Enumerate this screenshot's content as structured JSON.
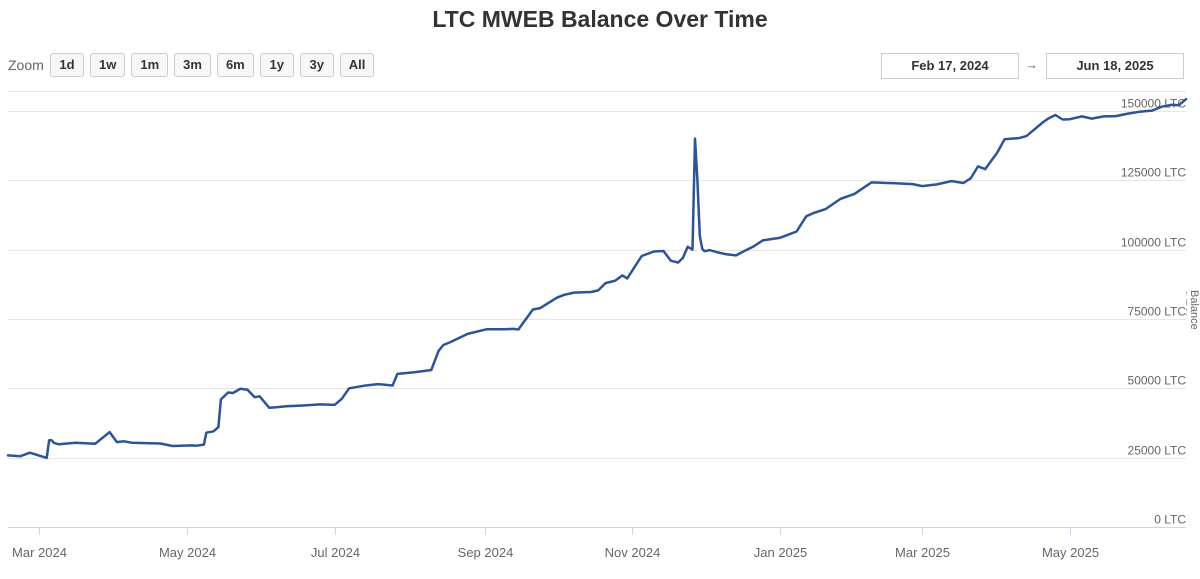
{
  "title": "LTC MWEB Balance Over Time",
  "zoom": {
    "label": "Zoom",
    "buttons": [
      "1d",
      "1w",
      "1m",
      "3m",
      "6m",
      "1y",
      "3y",
      "All"
    ]
  },
  "range": {
    "from": "Feb 17, 2024",
    "arrow": "→",
    "to": "Jun 18, 2025"
  },
  "colors": {
    "series": "#2d5494",
    "grid": "#e6e6e6",
    "axis_text": "#666666"
  },
  "chart_data": {
    "type": "line",
    "title": "LTC MWEB Balance Over Time",
    "ylabel": "Balance (LTC)",
    "ylim": [
      0,
      155000
    ],
    "xlim": [
      "2024-02-17",
      "2025-06-18"
    ],
    "grid": true,
    "y_ticks": [
      0,
      25000,
      50000,
      75000,
      100000,
      125000,
      150000
    ],
    "y_tick_labels": [
      "0 LTC",
      "25000 LTC",
      "50000 LTC",
      "75000 LTC",
      "100000 LTC",
      "125000 LTC",
      "150000 LTC"
    ],
    "x_ticks": [
      "2024-03-01",
      "2024-05-01",
      "2024-07-01",
      "2024-09-01",
      "2024-11-01",
      "2025-01-01",
      "2025-03-01",
      "2025-05-01"
    ],
    "x_tick_labels": [
      "Mar 2024",
      "May 2024",
      "Jul 2024",
      "Sep 2024",
      "Nov 2024",
      "Jan 2025",
      "Mar 2025",
      "May 2025"
    ],
    "series": [
      {
        "x": [
          "2024-02-17",
          "2024-02-22",
          "2024-02-26",
          "2024-03-04",
          "2024-03-05",
          "2024-03-06",
          "2024-03-07",
          "2024-03-09",
          "2024-03-16",
          "2024-03-24",
          "2024-03-30",
          "2024-04-02",
          "2024-04-05",
          "2024-04-08",
          "2024-04-20",
          "2024-04-25",
          "2024-05-03",
          "2024-05-05",
          "2024-05-08",
          "2024-05-09",
          "2024-05-12",
          "2024-05-14",
          "2024-05-15",
          "2024-05-18",
          "2024-05-20",
          "2024-05-23",
          "2024-05-26",
          "2024-05-29",
          "2024-05-31",
          "2024-06-04",
          "2024-06-07",
          "2024-06-11",
          "2024-06-18",
          "2024-06-25",
          "2024-07-01",
          "2024-07-04",
          "2024-07-07",
          "2024-07-13",
          "2024-07-19",
          "2024-07-25",
          "2024-07-27",
          "2024-08-03",
          "2024-08-10",
          "2024-08-13",
          "2024-08-15",
          "2024-08-18",
          "2024-08-25",
          "2024-09-02",
          "2024-09-09",
          "2024-09-13",
          "2024-09-15",
          "2024-09-16",
          "2024-09-21",
          "2024-09-24",
          "2024-10-01",
          "2024-10-04",
          "2024-10-08",
          "2024-10-15",
          "2024-10-18",
          "2024-10-21",
          "2024-10-25",
          "2024-10-28",
          "2024-10-30",
          "2024-11-05",
          "2024-11-10",
          "2024-11-14",
          "2024-11-17",
          "2024-11-20",
          "2024-11-22",
          "2024-11-24",
          "2024-11-26",
          "2024-11-27",
          "2024-11-28",
          "2024-11-29",
          "2024-11-30",
          "2024-12-01",
          "2024-12-03",
          "2024-12-06",
          "2024-12-10",
          "2024-12-14",
          "2024-12-17",
          "2024-12-21",
          "2024-12-25",
          "2025-01-01",
          "2025-01-08",
          "2025-01-12",
          "2025-01-15",
          "2025-01-20",
          "2025-01-26",
          "2025-02-01",
          "2025-02-08",
          "2025-02-12",
          "2025-02-18",
          "2025-02-25",
          "2025-03-01",
          "2025-03-07",
          "2025-03-13",
          "2025-03-18",
          "2025-03-21",
          "2025-03-24",
          "2025-03-27",
          "2025-04-01",
          "2025-04-04",
          "2025-04-10",
          "2025-04-13",
          "2025-04-20",
          "2025-04-22",
          "2025-04-25",
          "2025-04-28",
          "2025-05-01",
          "2025-05-06",
          "2025-05-10",
          "2025-05-15",
          "2025-05-20",
          "2025-05-25",
          "2025-05-30",
          "2025-06-04",
          "2025-06-08",
          "2025-06-12",
          "2025-06-15",
          "2025-06-18"
        ],
        "y": [
          25800,
          25500,
          26800,
          24900,
          31200,
          31300,
          30300,
          29800,
          30400,
          30000,
          34200,
          30600,
          30900,
          30400,
          30100,
          29200,
          29400,
          29300,
          29700,
          34000,
          34500,
          36000,
          46000,
          48500,
          48300,
          49800,
          49500,
          46800,
          47100,
          43000,
          43200,
          43500,
          43800,
          44200,
          44000,
          46200,
          50000,
          50900,
          51500,
          51000,
          55200,
          55800,
          56600,
          63500,
          65600,
          66700,
          69600,
          71300,
          71300,
          71400,
          71200,
          72400,
          78400,
          78900,
          82700,
          83700,
          84500,
          84700,
          85300,
          87900,
          88800,
          90700,
          89600,
          97700,
          99300,
          99500,
          96000,
          95300,
          97000,
          101000,
          100000,
          140000,
          125000,
          105000,
          100300,
          99400,
          99800,
          99100,
          98300,
          97900,
          99300,
          101000,
          103300,
          104200,
          106500,
          112000,
          113200,
          114600,
          118200,
          120100,
          124200,
          124100,
          123900,
          123600,
          122900,
          123500,
          124700,
          124000,
          125700,
          130000,
          129000,
          135000,
          139800,
          140200,
          140900,
          146000,
          147200,
          148500,
          146900,
          147000,
          148000,
          147200,
          148000,
          148100,
          149000,
          149700,
          150100,
          151500,
          152200,
          152000,
          154200
        ]
      }
    ]
  }
}
